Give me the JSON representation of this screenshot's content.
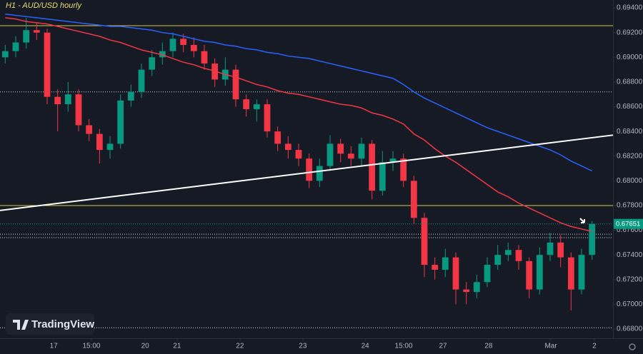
{
  "chart_data": {
    "type": "candlestick",
    "title": "H1 - AUD/USD hourly",
    "logo": "TradingView",
    "xlim": [
      0,
      234
    ],
    "ylim": [
      0.66748,
      0.69464
    ],
    "xticks": [
      {
        "value": 20.5,
        "label": "17"
      },
      {
        "value": 34.9,
        "label": "15:00"
      },
      {
        "value": 55.4,
        "label": "20"
      },
      {
        "value": 67.6,
        "label": "21"
      },
      {
        "value": 91.6,
        "label": "22"
      },
      {
        "value": 115.6,
        "label": "23"
      },
      {
        "value": 139.4,
        "label": "24"
      },
      {
        "value": 154.1,
        "label": "15:00"
      },
      {
        "value": 169.1,
        "label": "27"
      },
      {
        "value": 186.5,
        "label": "28"
      },
      {
        "value": 210.3,
        "label": "Mar"
      },
      {
        "value": 226.9,
        "label": "2"
      }
    ],
    "yticks": [
      {
        "value": 0.668,
        "label": "0.66800"
      },
      {
        "value": 0.67,
        "label": "0.67000"
      },
      {
        "value": 0.672,
        "label": "0.67200"
      },
      {
        "value": 0.674,
        "label": "0.67400"
      },
      {
        "value": 0.676,
        "label": "0.67600"
      },
      {
        "value": 0.678,
        "label": "0.67800"
      },
      {
        "value": 0.68,
        "label": "0.68000"
      },
      {
        "value": 0.682,
        "label": "0.68200"
      },
      {
        "value": 0.684,
        "label": "0.68400"
      },
      {
        "value": 0.686,
        "label": "0.68600"
      },
      {
        "value": 0.688,
        "label": "0.68800"
      },
      {
        "value": 0.69,
        "label": "0.69000"
      },
      {
        "value": 0.692,
        "label": "0.69200"
      },
      {
        "value": 0.694,
        "label": "0.69400"
      }
    ],
    "up_color": "#089981",
    "down_color": "#f23645",
    "x": [
      2,
      6,
      10,
      14,
      18,
      22,
      26,
      30,
      34,
      38,
      42,
      46,
      50,
      54,
      58,
      62,
      66,
      70,
      74,
      78,
      82,
      86,
      90,
      94,
      98,
      102,
      106,
      110,
      114,
      118,
      122,
      126,
      130,
      134,
      138,
      142,
      146,
      150,
      154,
      158,
      162,
      166,
      170,
      174,
      178,
      182,
      186,
      190,
      194,
      198,
      202,
      206,
      210,
      214,
      218,
      222,
      226
    ],
    "open": [
      0.69,
      0.6905,
      0.6912,
      0.6922,
      0.692,
      0.6868,
      0.6862,
      0.687,
      0.6845,
      0.6838,
      0.6825,
      0.683,
      0.6865,
      0.6872,
      0.689,
      0.69,
      0.6905,
      0.6915,
      0.691,
      0.6905,
      0.6895,
      0.6882,
      0.689,
      0.6866,
      0.6858,
      0.6862,
      0.684,
      0.683,
      0.6825,
      0.6818,
      0.68,
      0.6812,
      0.683,
      0.6822,
      0.6818,
      0.683,
      0.6792,
      0.6815,
      0.6818,
      0.68,
      0.677,
      0.6732,
      0.6728,
      0.6738,
      0.6712,
      0.671,
      0.6718,
      0.6732,
      0.674,
      0.6744,
      0.6735,
      0.6712,
      0.674,
      0.675,
      0.6738,
      0.6712,
      0.674
    ],
    "high": [
      0.691,
      0.6917,
      0.6932,
      0.6928,
      0.6923,
      0.6874,
      0.688,
      0.6874,
      0.685,
      0.6842,
      0.6836,
      0.687,
      0.6878,
      0.6895,
      0.6906,
      0.6912,
      0.692,
      0.6919,
      0.6916,
      0.691,
      0.6899,
      0.69,
      0.6894,
      0.687,
      0.6866,
      0.6866,
      0.6844,
      0.6836,
      0.683,
      0.6822,
      0.6818,
      0.6837,
      0.6834,
      0.6828,
      0.6835,
      0.6833,
      0.6824,
      0.6824,
      0.6822,
      0.6804,
      0.6774,
      0.6738,
      0.6745,
      0.6742,
      0.6718,
      0.6724,
      0.6738,
      0.6748,
      0.675,
      0.6748,
      0.6738,
      0.6746,
      0.6758,
      0.6756,
      0.6742,
      0.6745,
      0.67675
    ],
    "low": [
      0.6895,
      0.69,
      0.6907,
      0.6914,
      0.6862,
      0.684,
      0.6856,
      0.684,
      0.6832,
      0.6814,
      0.6818,
      0.6826,
      0.686,
      0.6867,
      0.6885,
      0.6894,
      0.69,
      0.6904,
      0.69,
      0.689,
      0.6876,
      0.6877,
      0.686,
      0.6852,
      0.6848,
      0.6835,
      0.6824,
      0.6818,
      0.6812,
      0.6794,
      0.6795,
      0.6808,
      0.6815,
      0.6812,
      0.6812,
      0.6785,
      0.6788,
      0.6808,
      0.6795,
      0.6765,
      0.6722,
      0.672,
      0.6722,
      0.67,
      0.67,
      0.6705,
      0.6714,
      0.6728,
      0.6735,
      0.6728,
      0.6705,
      0.6708,
      0.6735,
      0.673,
      0.6695,
      0.6708,
      0.6736
    ],
    "close": [
      0.6905,
      0.6912,
      0.6922,
      0.692,
      0.6868,
      0.6862,
      0.687,
      0.6845,
      0.6838,
      0.6825,
      0.683,
      0.6865,
      0.6872,
      0.689,
      0.69,
      0.6905,
      0.6915,
      0.691,
      0.6905,
      0.6895,
      0.6882,
      0.689,
      0.6866,
      0.6858,
      0.6862,
      0.684,
      0.683,
      0.6825,
      0.6818,
      0.68,
      0.6812,
      0.683,
      0.6822,
      0.6818,
      0.683,
      0.6792,
      0.6815,
      0.6818,
      0.68,
      0.677,
      0.6732,
      0.6728,
      0.6738,
      0.6712,
      0.671,
      0.6718,
      0.6732,
      0.674,
      0.6744,
      0.6735,
      0.6712,
      0.674,
      0.675,
      0.6738,
      0.6712,
      0.674,
      0.67651
    ],
    "lines": [
      {
        "color": "#2962ff",
        "values": [
          0.6935,
          0.6934,
          0.6933,
          0.6932,
          0.6931,
          0.693,
          0.6929,
          0.6928,
          0.6927,
          0.6926,
          0.6925,
          0.6925,
          0.6924,
          0.6923,
          0.6922,
          0.692,
          0.6919,
          0.6917,
          0.6915,
          0.6913,
          0.6912,
          0.691,
          0.6909,
          0.6907,
          0.6906,
          0.6904,
          0.6903,
          0.6901,
          0.69,
          0.6899,
          0.6897,
          0.6895,
          0.6893,
          0.6891,
          0.6889,
          0.6887,
          0.6885,
          0.6883,
          0.6878,
          0.6872,
          0.6867,
          0.6863,
          0.6859,
          0.6855,
          0.6851,
          0.6847,
          0.6843,
          0.684,
          0.6837,
          0.6834,
          0.6831,
          0.6828,
          0.6825,
          0.6821,
          0.6816,
          0.6812,
          0.6808
        ]
      },
      {
        "color": "#f23645",
        "values": [
          0.6932,
          0.6931,
          0.6929,
          0.6928,
          0.6927,
          0.6925,
          0.6923,
          0.6921,
          0.6919,
          0.6917,
          0.6914,
          0.6912,
          0.6909,
          0.6906,
          0.6904,
          0.6902,
          0.6899,
          0.6896,
          0.6894,
          0.6891,
          0.6889,
          0.6886,
          0.6884,
          0.6881,
          0.6878,
          0.6876,
          0.6873,
          0.6871,
          0.687,
          0.6868,
          0.6866,
          0.6864,
          0.6862,
          0.6861,
          0.6859,
          0.6855,
          0.6853,
          0.685,
          0.6846,
          0.6838,
          0.6833,
          0.6826,
          0.682,
          0.6815,
          0.6809,
          0.6803,
          0.6797,
          0.6791,
          0.6787,
          0.6782,
          0.6778,
          0.6774,
          0.677,
          0.6766,
          0.6763,
          0.6761,
          0.6759
        ]
      }
    ],
    "hlines": [
      {
        "value": 0.69256,
        "color": "#d4c84a",
        "style": "solid"
      },
      {
        "value": 0.6872,
        "color": "#d1d4dc",
        "style": "dotted"
      },
      {
        "value": 0.678,
        "color": "#d4c84a",
        "style": "solid"
      },
      {
        "value": 0.67568,
        "color": "#d1d4dc",
        "style": "dotted"
      },
      {
        "value": 0.6754,
        "color": "#d1d4dc",
        "style": "dotted"
      },
      {
        "value": 0.6681,
        "color": "#d1d4dc",
        "style": "dotted"
      }
    ],
    "trendline": {
      "x": [
        0,
        234
      ],
      "y": [
        0.6776,
        0.6837
      ],
      "color": "#ffffff"
    },
    "last_price": {
      "value": 0.67651,
      "label": "0.67651"
    }
  }
}
